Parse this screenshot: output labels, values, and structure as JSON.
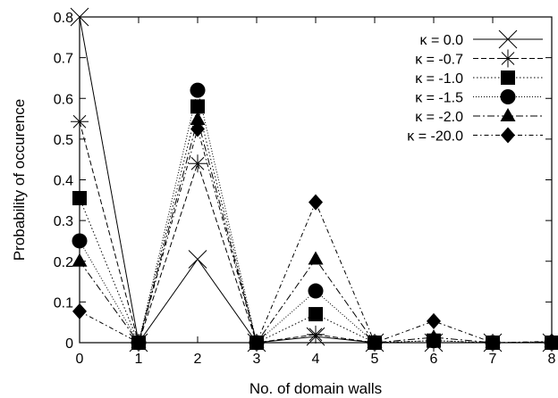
{
  "chart_data": {
    "type": "line",
    "xlabel": "No. of domain walls",
    "ylabel": "Probability of occurence",
    "xlim": [
      0,
      8
    ],
    "ylim": [
      0,
      0.8
    ],
    "x": [
      0,
      1,
      2,
      3,
      4,
      5,
      6,
      7,
      8
    ],
    "xticks": [
      "0",
      "1",
      "2",
      "3",
      "4",
      "5",
      "6",
      "7",
      "8"
    ],
    "yticks": [
      "0",
      "0.1",
      "0.2",
      "0.3",
      "0.4",
      "0.5",
      "0.6",
      "0.7",
      "0.8"
    ],
    "grid": false,
    "legend_position": "top-right",
    "series": [
      {
        "name": "κ = 0.0",
        "marker": "cross",
        "dash": "solid",
        "values": [
          0.8,
          0,
          0.205,
          0,
          0.015,
          0,
          0,
          0,
          0
        ]
      },
      {
        "name": "κ = -0.7",
        "marker": "star",
        "dash": "dashed",
        "values": [
          0.543,
          0,
          0.44,
          0,
          0.02,
          0,
          0,
          0,
          0
        ]
      },
      {
        "name": "κ = -1.0",
        "marker": "square",
        "dash": "dotted",
        "values": [
          0.355,
          0,
          0.58,
          0,
          0.07,
          0,
          0.005,
          0,
          0
        ]
      },
      {
        "name": "κ = -1.5",
        "marker": "circle",
        "dash": "dotted2",
        "values": [
          0.25,
          0,
          0.62,
          0,
          0.127,
          0,
          0.005,
          0,
          0
        ]
      },
      {
        "name": "κ = -2.0",
        "marker": "triangle",
        "dash": "dashdot",
        "values": [
          0.2,
          0,
          0.548,
          0,
          0.205,
          0,
          0.013,
          0,
          0.002
        ]
      },
      {
        "name": "κ = -20.0",
        "marker": "diamond",
        "dash": "dashdot2",
        "values": [
          0.077,
          0,
          0.525,
          0,
          0.345,
          0,
          0.053,
          0,
          0.003
        ]
      }
    ]
  }
}
